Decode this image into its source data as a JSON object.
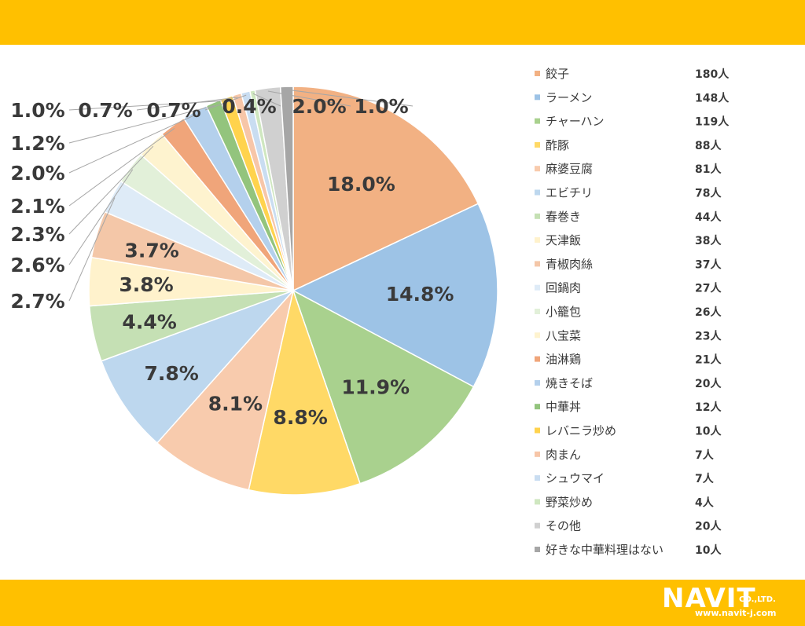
{
  "colors": {
    "band": "#ffc000",
    "text": "#3a3a3a",
    "leader": "#a6a6a6"
  },
  "logo": {
    "brand": "NAVIT",
    "company_suffix": "CO.,LTD.",
    "url": "www.navit-j.com"
  },
  "chart_data": {
    "type": "pie",
    "start": "12 o'clock, clockwise",
    "categories": [
      "餃子",
      "ラーメン",
      "チャーハン",
      "酢豚",
      "麻婆豆腐",
      "エビチリ",
      "春巻き",
      "天津飯",
      "青椒肉絲",
      "回鍋肉",
      "小籠包",
      "八宝菜",
      "油淋鶏",
      "焼きそば",
      "中華丼",
      "レバニラ炒め",
      "肉まん",
      "シュウマイ",
      "野菜炒め",
      "その他",
      "好きな中華料理はない"
    ],
    "values": [
      180,
      148,
      119,
      88,
      81,
      78,
      44,
      38,
      37,
      27,
      26,
      23,
      21,
      20,
      12,
      10,
      7,
      7,
      4,
      20,
      10
    ],
    "counts": [
      "180人",
      "148人",
      "119人",
      "88人",
      "81人",
      "78人",
      "44人",
      "38人",
      "37人",
      "27人",
      "26人",
      "23人",
      "21人",
      "20人",
      "12人",
      "10人",
      "7人",
      "7人",
      "4人",
      "20人",
      "10人"
    ],
    "data_labels": [
      "18.0%",
      "14.8%",
      "11.9%",
      "8.8%",
      "8.1%",
      "7.8%",
      "4.4%",
      "3.8%",
      "3.7%",
      "2.7%",
      "2.6%",
      "2.3%",
      "2.1%",
      "2.0%",
      "1.2%",
      "1.0%",
      "0.7%",
      "0.7%",
      "0.4%",
      "2.0%",
      "1.0%"
    ],
    "colors": [
      "#f2b183",
      "#9dc3e6",
      "#a9d18e",
      "#ffd966",
      "#f8cbad",
      "#bdd7ee",
      "#c5e0b4",
      "#fff2cc",
      "#f4c7a8",
      "#deebf7",
      "#e2f0d9",
      "#fef3cf",
      "#f0a57a",
      "#b4d0ec",
      "#93c47d",
      "#ffd34d",
      "#f7c6a8",
      "#c9ddf1",
      "#cfe7c0",
      "#d0d0d0",
      "#a6a6a6"
    ],
    "legend_position": "right"
  }
}
